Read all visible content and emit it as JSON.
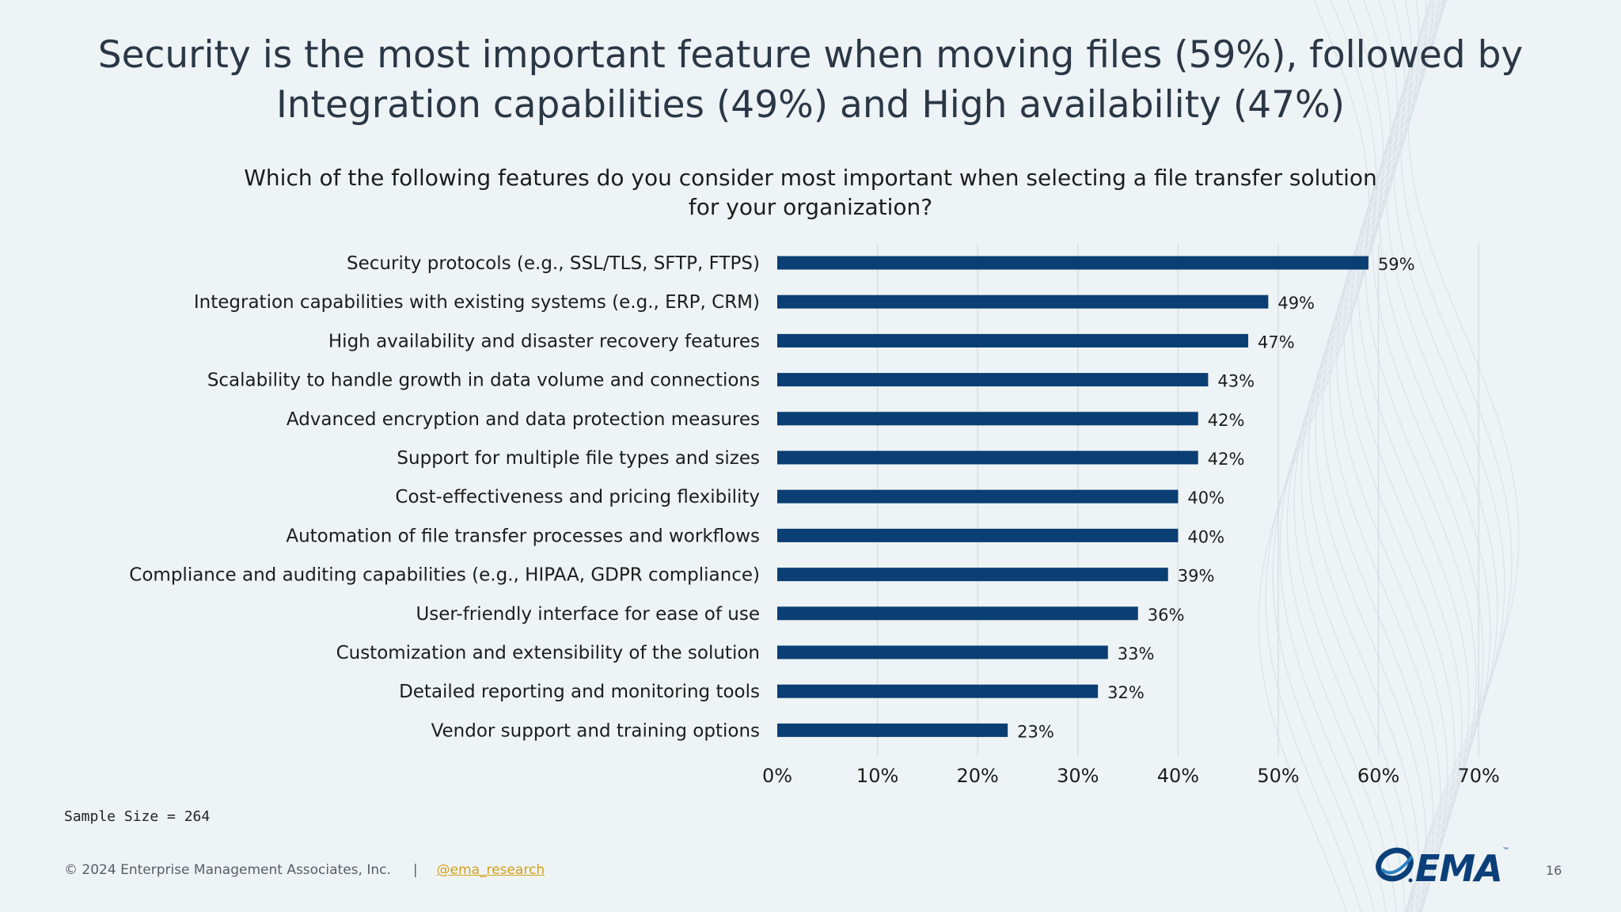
{
  "slide": {
    "headline": "Security is the most important feature when moving files (59%), followed by Integration capabilities (49%) and High availability (47%)",
    "question": "Which of the following features do you consider most important when selecting a file transfer solution for your organization?",
    "sample_size": "Sample Size = 264",
    "copyright": "© 2024 Enterprise Management Associates, Inc.",
    "separator": "|",
    "twitter_handle": "@ema_research",
    "logo_text": "EMA",
    "logo_tm": "™",
    "page_number": "16"
  },
  "colors": {
    "bar": "#0b3f73",
    "gridline": "#d4dbe0",
    "background": "#eef3f6",
    "link": "#d4a017"
  },
  "chart_data": {
    "type": "bar",
    "orientation": "horizontal",
    "categories": [
      "Security protocols (e.g., SSL/TLS, SFTP, FTPS)",
      "Integration capabilities with existing systems (e.g., ERP, CRM)",
      "High availability and disaster recovery features",
      "Scalability to handle growth in data volume and connections",
      "Advanced encryption and data protection measures",
      "Support for multiple file types and sizes",
      "Cost-effectiveness and pricing flexibility",
      "Automation of file transfer processes and workflows",
      "Compliance and auditing capabilities (e.g., HIPAA, GDPR compliance)",
      "User-friendly interface for ease of use",
      "Customization and extensibility of the solution",
      "Detailed reporting and monitoring tools",
      "Vendor support and training options"
    ],
    "values": [
      59,
      49,
      47,
      43,
      42,
      42,
      40,
      40,
      39,
      36,
      33,
      32,
      23
    ],
    "value_labels": [
      "59%",
      "49%",
      "47%",
      "43%",
      "42%",
      "42%",
      "40%",
      "40%",
      "39%",
      "36%",
      "33%",
      "32%",
      "23%"
    ],
    "xlim": [
      0,
      70
    ],
    "x_ticks": [
      0,
      10,
      20,
      30,
      40,
      50,
      60,
      70
    ],
    "x_tick_labels": [
      "0%",
      "10%",
      "20%",
      "30%",
      "40%",
      "50%",
      "60%",
      "70%"
    ],
    "grid": true,
    "legend": "none"
  }
}
